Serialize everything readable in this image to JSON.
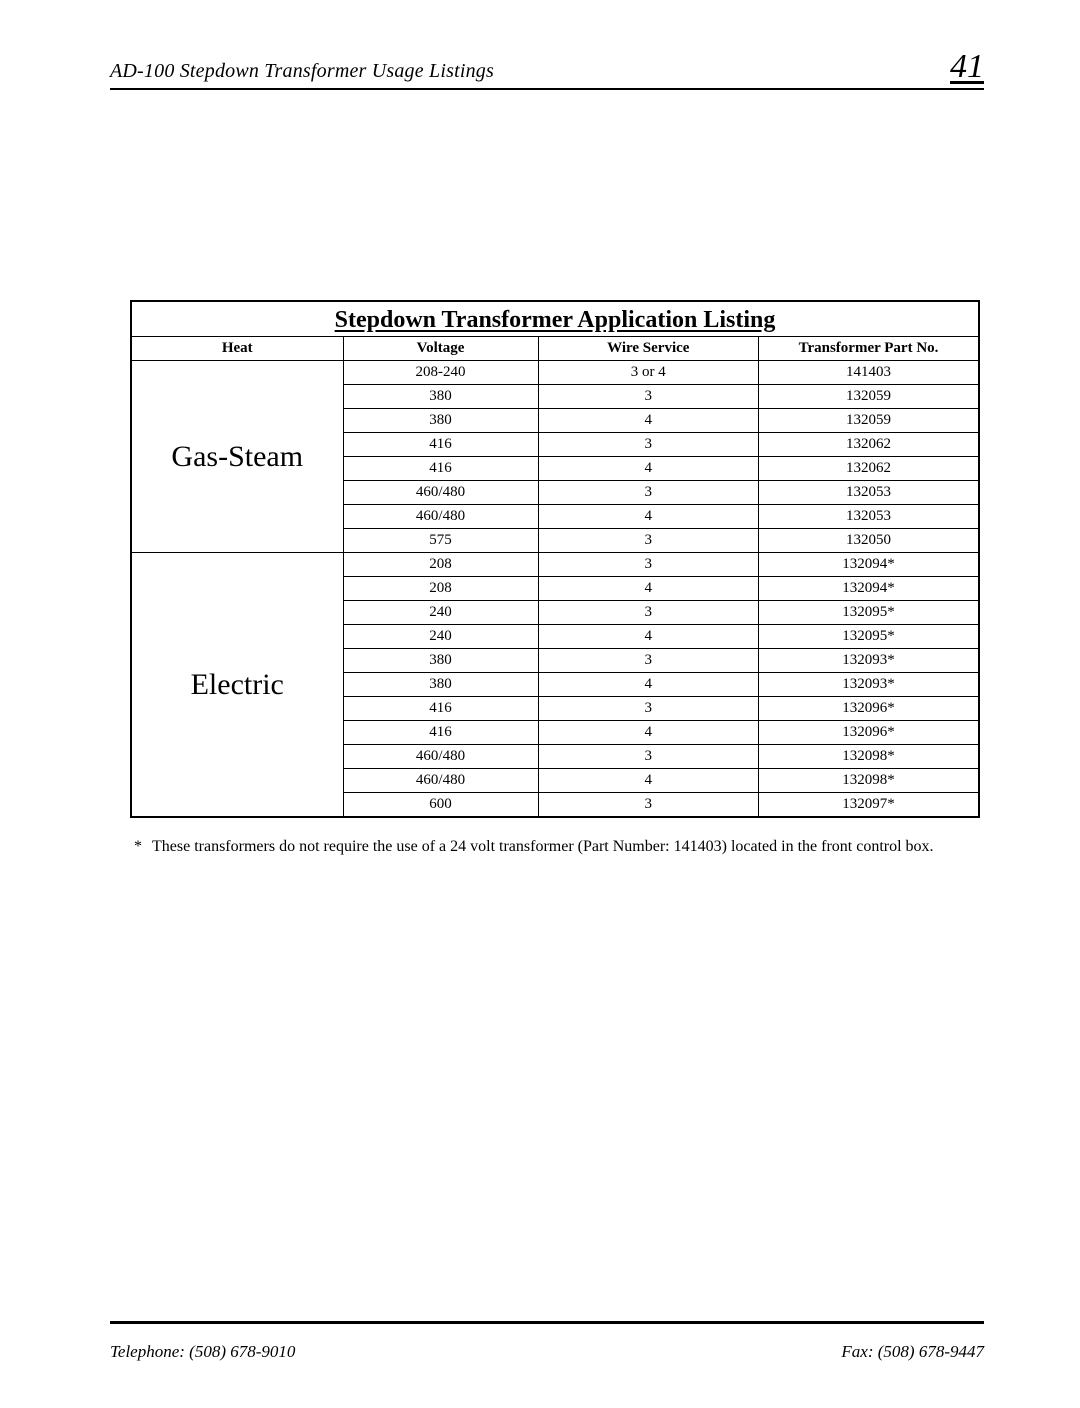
{
  "header": {
    "title": "AD-100 Stepdown Transformer Usage Listings",
    "page_number": "41"
  },
  "table": {
    "title": "Stepdown Transformer Application Listing",
    "columns": [
      "Heat",
      "Voltage",
      "Wire Service",
      "Transformer Part No."
    ],
    "sections": [
      {
        "heat": "Gas-Steam",
        "rows": [
          {
            "voltage": "208-240",
            "wire": "3 or 4",
            "part": "141403"
          },
          {
            "voltage": "380",
            "wire": "3",
            "part": "132059"
          },
          {
            "voltage": "380",
            "wire": "4",
            "part": "132059"
          },
          {
            "voltage": "416",
            "wire": "3",
            "part": "132062"
          },
          {
            "voltage": "416",
            "wire": "4",
            "part": "132062"
          },
          {
            "voltage": "460/480",
            "wire": "3",
            "part": "132053"
          },
          {
            "voltage": "460/480",
            "wire": "4",
            "part": "132053"
          },
          {
            "voltage": "575",
            "wire": "3",
            "part": "132050"
          }
        ]
      },
      {
        "heat": "Electric",
        "rows": [
          {
            "voltage": "208",
            "wire": "3",
            "part": "132094*"
          },
          {
            "voltage": "208",
            "wire": "4",
            "part": "132094*"
          },
          {
            "voltage": "240",
            "wire": "3",
            "part": "132095*"
          },
          {
            "voltage": "240",
            "wire": "4",
            "part": "132095*"
          },
          {
            "voltage": "380",
            "wire": "3",
            "part": "132093*"
          },
          {
            "voltage": "380",
            "wire": "4",
            "part": "132093*"
          },
          {
            "voltage": "416",
            "wire": "3",
            "part": "132096*"
          },
          {
            "voltage": "416",
            "wire": "4",
            "part": "132096*"
          },
          {
            "voltage": "460/480",
            "wire": "3",
            "part": "132098*"
          },
          {
            "voltage": "460/480",
            "wire": "4",
            "part": "132098*"
          },
          {
            "voltage": "600",
            "wire": "3",
            "part": "132097*"
          }
        ]
      }
    ]
  },
  "footnote_marker": "*",
  "footnote": "These transformers do not require the use of a 24 volt transformer (Part Number: 141403) located in the front control box.",
  "footer": {
    "telephone": "Telephone: (508) 678-9010",
    "fax": "Fax: (508) 678-9447"
  }
}
